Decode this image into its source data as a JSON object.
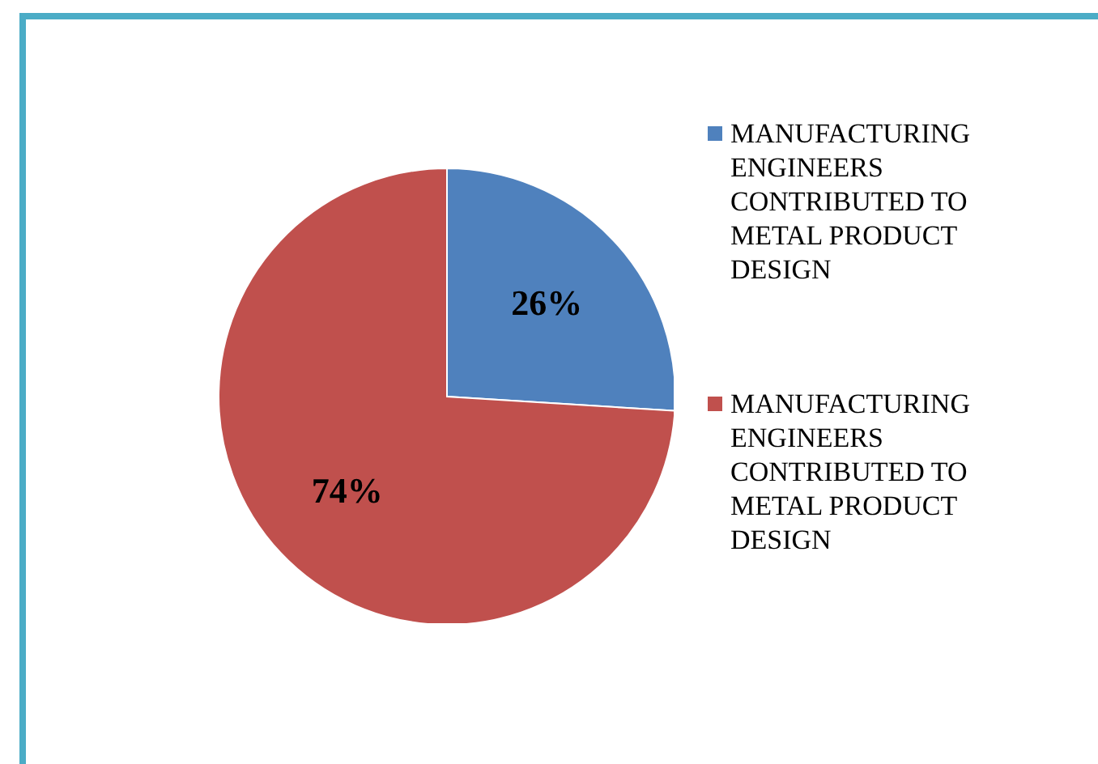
{
  "chart_data": {
    "type": "pie",
    "categories": [
      "MANUFACTURING ENGINEERS CONTRIBUTED TO METAL PRODUCT DESIGN",
      "MANUFACTURING ENGINEERS CONTRIBUTED TO METAL PRODUCT DESIGN"
    ],
    "values": [
      26,
      74
    ],
    "value_labels": [
      "26%",
      "74%"
    ],
    "colors": [
      "#4f81bd",
      "#c0504d"
    ],
    "legend": "right"
  }
}
